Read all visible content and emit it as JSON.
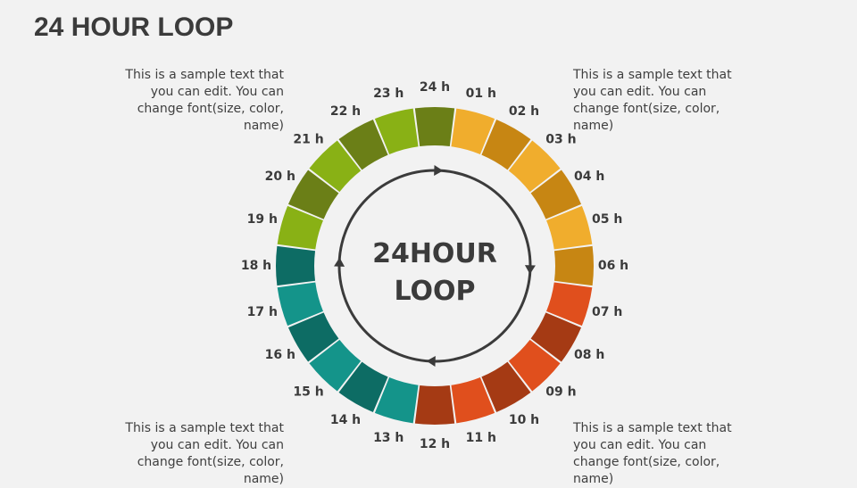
{
  "title": "24 HOUR LOOP",
  "center": {
    "line1": "24HOUR",
    "line2": "LOOP"
  },
  "notes": {
    "top_left": "This is a sample text that you can edit. You can change font(size, color, name)",
    "top_right": "This is a sample text that you can edit. You can change font(size, color, name)",
    "bottom_left": "This is a sample text that you can edit. You can change font(size, color, name)",
    "bottom_right": "This is a sample text that you can edit. You can change font(size, color, name)"
  },
  "segments": [
    {
      "label": "24 h",
      "color": "#6b7f17"
    },
    {
      "label": "01 h",
      "color": "#f0ad2d"
    },
    {
      "label": "02 h",
      "color": "#c78613"
    },
    {
      "label": "03 h",
      "color": "#f0ad2d"
    },
    {
      "label": "04 h",
      "color": "#c78613"
    },
    {
      "label": "05 h",
      "color": "#f0ad2d"
    },
    {
      "label": "06 h",
      "color": "#c78613"
    },
    {
      "label": "07 h",
      "color": "#e04f1d"
    },
    {
      "label": "08 h",
      "color": "#a53a14"
    },
    {
      "label": "09 h",
      "color": "#e04f1d"
    },
    {
      "label": "10 h",
      "color": "#a53a14"
    },
    {
      "label": "11 h",
      "color": "#e04f1d"
    },
    {
      "label": "12 h",
      "color": "#a53a14"
    },
    {
      "label": "13 h",
      "color": "#14948a"
    },
    {
      "label": "14 h",
      "color": "#0d6c64"
    },
    {
      "label": "15 h",
      "color": "#14948a"
    },
    {
      "label": "16 h",
      "color": "#0d6c64"
    },
    {
      "label": "17 h",
      "color": "#14948a"
    },
    {
      "label": "18 h",
      "color": "#0d6c64"
    },
    {
      "label": "19 h",
      "color": "#89b115"
    },
    {
      "label": "20 h",
      "color": "#6b7f17"
    },
    {
      "label": "21 h",
      "color": "#89b115"
    },
    {
      "label": "22 h",
      "color": "#6b7f17"
    },
    {
      "label": "23 h",
      "color": "#89b115"
    }
  ],
  "colors": {
    "arrow": "#3b3b3b",
    "text": "#3b3b3b",
    "background": "#f2f2f2"
  }
}
